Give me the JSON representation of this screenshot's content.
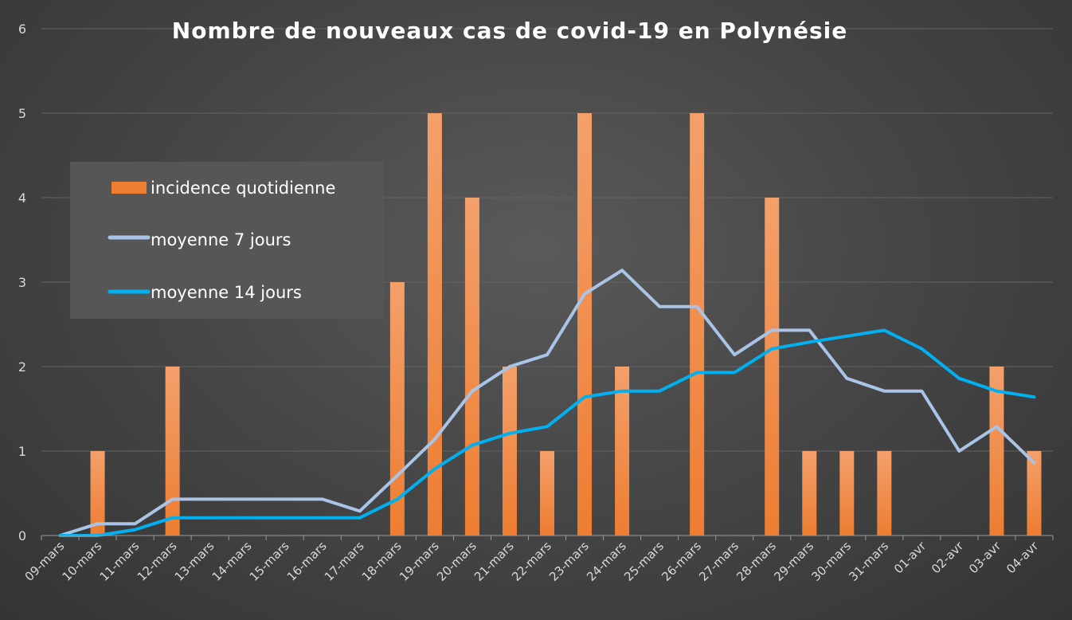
{
  "chart_data": {
    "type": "bar",
    "title": "Nombre de nouveaux cas de covid-19 en Polynésie",
    "xlabel": "",
    "ylabel": "",
    "ylim": [
      0,
      6
    ],
    "yticks": [
      "0",
      "1",
      "2",
      "3",
      "4",
      "5",
      "6"
    ],
    "grid": true,
    "legend_position": "left",
    "categories": [
      "09-mars",
      "10-mars",
      "11-mars",
      "12-mars",
      "13-mars",
      "14-mars",
      "15-mars",
      "16-mars",
      "17-mars",
      "18-mars",
      "19-mars",
      "20-mars",
      "21-mars",
      "22-mars",
      "23-mars",
      "24-mars",
      "25-mars",
      "26-mars",
      "27-mars",
      "28-mars",
      "29-mars",
      "30-mars",
      "31-mars",
      "01-avr",
      "02-avr",
      "03-avr",
      "04-avr"
    ],
    "series": [
      {
        "name": "incidence quotidienne",
        "type": "bar",
        "color": "#ed7d31",
        "values": [
          0,
          1,
          0,
          2,
          0,
          0,
          0,
          0,
          0,
          3,
          5,
          4,
          2,
          1,
          5,
          2,
          0,
          5,
          0,
          4,
          1,
          1,
          1,
          0,
          0,
          2,
          1
        ]
      },
      {
        "name": "moyenne 7 jours",
        "type": "line",
        "color": "#a9c4e6",
        "values": [
          0,
          0.14,
          0.14,
          0.43,
          0.43,
          0.43,
          0.43,
          0.43,
          0.29,
          0.71,
          1.14,
          1.71,
          2.0,
          2.14,
          2.86,
          3.14,
          2.71,
          2.71,
          2.14,
          2.43,
          2.43,
          1.86,
          1.71,
          1.71,
          1.0,
          1.29,
          0.86
        ]
      },
      {
        "name": "moyenne 14 jours",
        "type": "line",
        "color": "#00b0f0",
        "values": [
          0,
          0,
          0.07,
          0.21,
          0.21,
          0.21,
          0.21,
          0.21,
          0.21,
          0.43,
          0.79,
          1.07,
          1.21,
          1.29,
          1.64,
          1.71,
          1.71,
          1.93,
          1.93,
          2.21,
          2.29,
          2.36,
          2.43,
          2.21,
          1.86,
          1.71,
          1.64
        ]
      }
    ]
  }
}
